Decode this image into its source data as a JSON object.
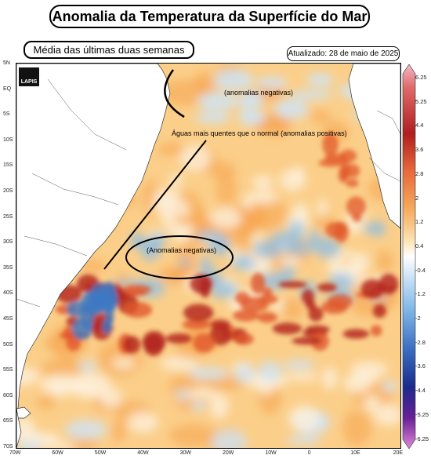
{
  "title": "Anomalia da Temperatura da Superfície do Mar",
  "subtitle": "Média das últimas duas semanas",
  "updated": "Atualizado: 28 de maio de 2025",
  "logo_text": "LAPIS",
  "annotations": {
    "neg_north": "(anomalias negativas)",
    "pos_main": "Águas mais quentes que o normal (anomalias positivas)",
    "neg_south": "(Anomalias negativas)"
  },
  "lat_ticks": [
    "5N",
    "EQ",
    "5S",
    "10S",
    "15S",
    "20S",
    "25S",
    "30S",
    "35S",
    "40S",
    "45S",
    "50S",
    "55S",
    "60S",
    "65S",
    "70S"
  ],
  "lon_ticks": [
    "70W",
    "60W",
    "50W",
    "40W",
    "30W",
    "20W",
    "10W",
    "0",
    "10E",
    "20E"
  ],
  "colorbar_labels": [
    "6.25",
    "5.25",
    "4.4",
    "3.6",
    "2.8",
    "2",
    "1.2",
    "0.4",
    "-0.4",
    "-1.2",
    "-2",
    "-2.8",
    "-3.6",
    "-4.4",
    "-5.25",
    "-6.25"
  ],
  "colors": {
    "land": "#ffffff",
    "warm_light": "#fbd28e",
    "warm_mid": "#f5a24c",
    "warm_strong": "#e0562a",
    "warm_extreme": "#b1221c",
    "neutral": "#fdf0dc",
    "cool_light": "#cfe4f5",
    "cool_mid": "#8cbde6",
    "cool_strong": "#3e78c2"
  }
}
